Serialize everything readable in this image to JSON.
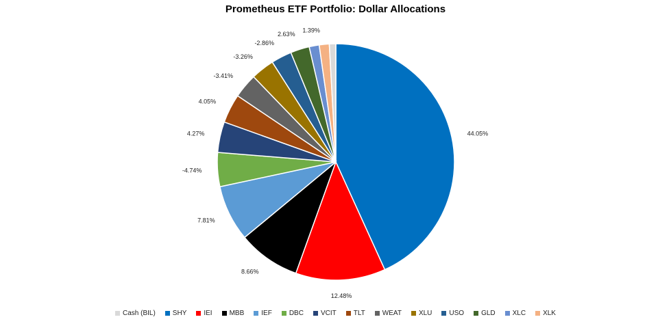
{
  "chart_data": {
    "type": "pie",
    "title": "Prometheus ETF Portfolio: Dollar Allocations",
    "legend_position": "bottom",
    "slices": [
      {
        "name": "SHY",
        "value": 44.05,
        "label": "44.05%",
        "color": "#0070C0"
      },
      {
        "name": "IEI",
        "value": 12.48,
        "label": "12.48%",
        "color": "#FF0000"
      },
      {
        "name": "MBB",
        "value": 8.66,
        "label": "8.66%",
        "color": "#000000"
      },
      {
        "name": "IEF",
        "value": 7.81,
        "label": "7.81%",
        "color": "#5B9BD5"
      },
      {
        "name": "DBC",
        "value": 4.74,
        "label": "-4.74%",
        "color": "#70AD47"
      },
      {
        "name": "VCIT",
        "value": 4.27,
        "label": "4.27%",
        "color": "#264478"
      },
      {
        "name": "TLT",
        "value": 4.05,
        "label": "4.05%",
        "color": "#9E480E"
      },
      {
        "name": "WEAT",
        "value": 3.41,
        "label": "-3.41%",
        "color": "#636363"
      },
      {
        "name": "XLU",
        "value": 3.26,
        "label": "-3.26%",
        "color": "#997300"
      },
      {
        "name": "USO",
        "value": 2.86,
        "label": "-2.86%",
        "color": "#255E91"
      },
      {
        "name": "GLD",
        "value": 2.63,
        "label": "2.63%",
        "color": "#43682B"
      },
      {
        "name": "XLC",
        "value": 1.39,
        "label": "1.39%",
        "color": "#698ED0"
      },
      {
        "name": "XLK",
        "value": 1.39,
        "label": "",
        "color": "#F4B183"
      },
      {
        "name": "Cash (BIL)",
        "value": 0.9,
        "label": "",
        "color": "#D9D9D9"
      }
    ],
    "legend": [
      {
        "name": "Cash (BIL)",
        "color": "#D9D9D9"
      },
      {
        "name": "SHY",
        "color": "#0070C0"
      },
      {
        "name": "IEI",
        "color": "#FF0000"
      },
      {
        "name": "MBB",
        "color": "#000000"
      },
      {
        "name": "IEF",
        "color": "#5B9BD5"
      },
      {
        "name": "DBC",
        "color": "#70AD47"
      },
      {
        "name": "VCIT",
        "color": "#264478"
      },
      {
        "name": "TLT",
        "color": "#9E480E"
      },
      {
        "name": "WEAT",
        "color": "#636363"
      },
      {
        "name": "XLU",
        "color": "#997300"
      },
      {
        "name": "USO",
        "color": "#255E91"
      },
      {
        "name": "GLD",
        "color": "#43682B"
      },
      {
        "name": "XLC",
        "color": "#698ED0"
      },
      {
        "name": "XLK",
        "color": "#F4B183"
      }
    ]
  }
}
